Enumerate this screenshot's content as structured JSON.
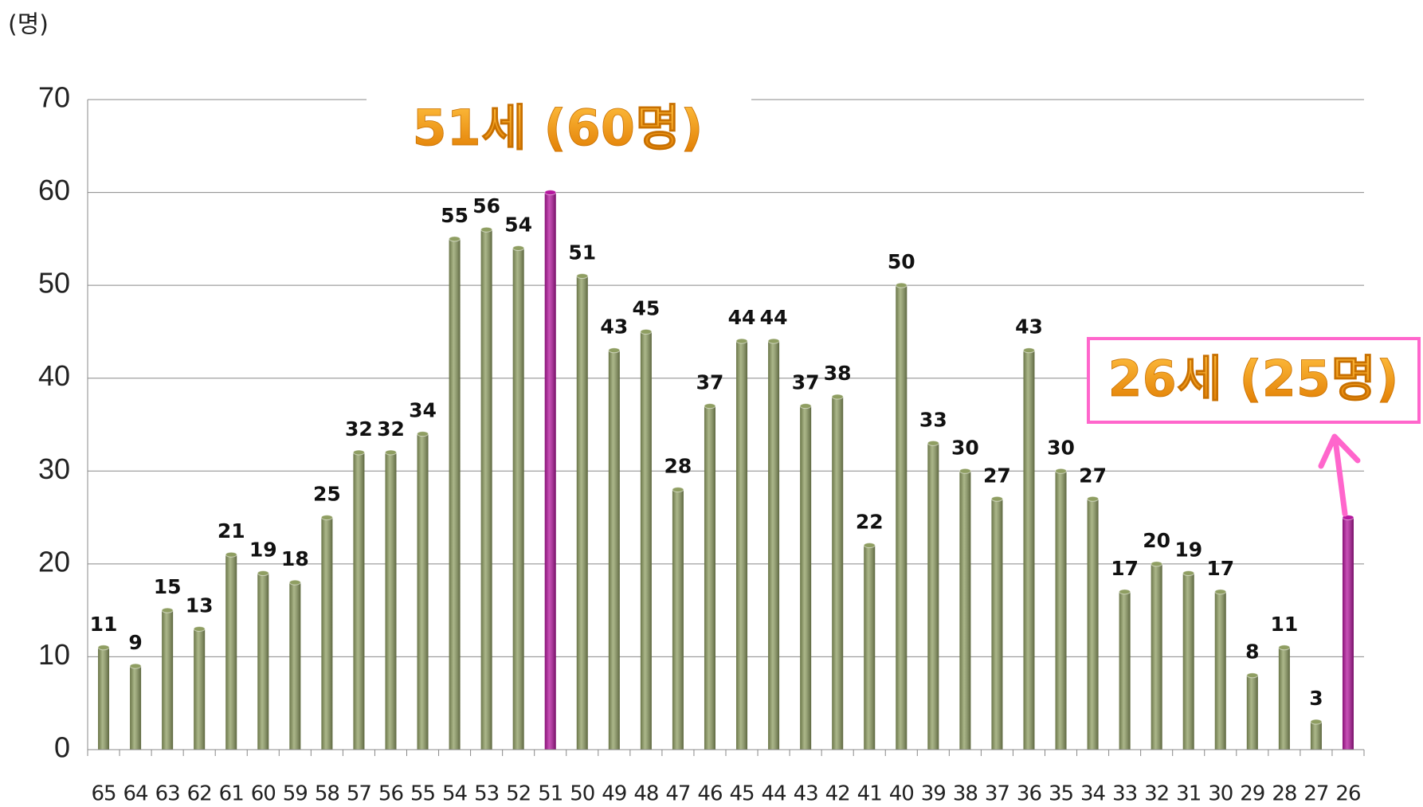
{
  "chart_data": {
    "type": "bar",
    "y_axis_label": "(명)",
    "categories": [
      "65",
      "64",
      "63",
      "62",
      "61",
      "60",
      "59",
      "58",
      "57",
      "56",
      "55",
      "54",
      "53",
      "52",
      "51",
      "50",
      "49",
      "48",
      "47",
      "46",
      "45",
      "44",
      "43",
      "42",
      "41",
      "40",
      "39",
      "38",
      "37",
      "36",
      "35",
      "34",
      "33",
      "32",
      "31",
      "30",
      "29",
      "28",
      "27",
      "26"
    ],
    "values": [
      11,
      9,
      15,
      13,
      21,
      19,
      18,
      25,
      32,
      32,
      34,
      55,
      56,
      54,
      60,
      51,
      43,
      45,
      28,
      37,
      44,
      44,
      37,
      38,
      22,
      50,
      33,
      30,
      27,
      43,
      30,
      27,
      17,
      20,
      19,
      17,
      8,
      11,
      3,
      25
    ],
    "colors": [
      "#8f9e62",
      "#8f9e62",
      "#8f9e62",
      "#8f9e62",
      "#8f9e62",
      "#8f9e62",
      "#8f9e62",
      "#8f9e62",
      "#8f9e62",
      "#8f9e62",
      "#8f9e62",
      "#8f9e62",
      "#8f9e62",
      "#8f9e62",
      "#b5179e",
      "#8f9e62",
      "#8f9e62",
      "#8f9e62",
      "#8f9e62",
      "#8f9e62",
      "#8f9e62",
      "#8f9e62",
      "#8f9e62",
      "#8f9e62",
      "#8f9e62",
      "#8f9e62",
      "#8f9e62",
      "#8f9e62",
      "#8f9e62",
      "#8f9e62",
      "#8f9e62",
      "#8f9e62",
      "#8f9e62",
      "#8f9e62",
      "#8f9e62",
      "#8f9e62",
      "#8f9e62",
      "#8f9e62",
      "#8f9e62",
      "#b5179e"
    ],
    "data_labels": [
      true,
      true,
      true,
      true,
      true,
      true,
      true,
      true,
      true,
      true,
      true,
      true,
      true,
      true,
      false,
      true,
      true,
      true,
      true,
      true,
      true,
      true,
      true,
      true,
      true,
      true,
      true,
      true,
      true,
      true,
      true,
      true,
      true,
      true,
      true,
      true,
      true,
      true,
      true,
      false
    ],
    "annotations": [
      "51세 (60명)",
      "26세 (25명)"
    ],
    "ylim": [
      0,
      70
    ],
    "yticks": [
      0,
      10,
      20,
      30,
      40,
      50,
      60,
      70
    ],
    "grid": true
  }
}
